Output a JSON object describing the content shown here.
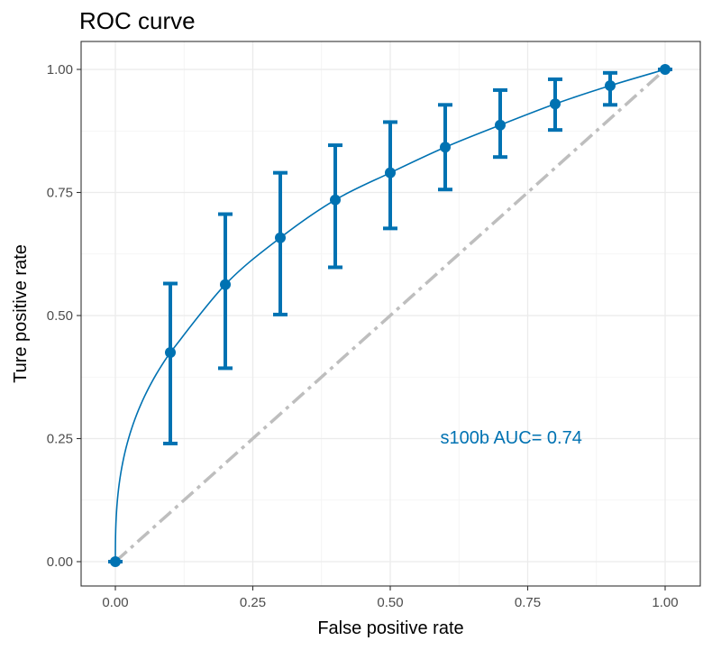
{
  "chart_data": {
    "type": "line",
    "title": "ROC curve",
    "xlabel": "False positive rate",
    "ylabel": "Ture positive rate",
    "xlim": [
      0,
      1
    ],
    "ylim": [
      0,
      1
    ],
    "x_ticks": [
      "0.00",
      "0.25",
      "0.50",
      "0.75",
      "1.00"
    ],
    "y_ticks": [
      "0.00",
      "0.25",
      "0.50",
      "0.75",
      "1.00"
    ],
    "grid": true,
    "series_color": "#0072B2",
    "diagonal_color": "#BEBEBE",
    "points": [
      {
        "x": 0.0,
        "y": 0.0,
        "ymin": 0.0,
        "ymax": 0.0
      },
      {
        "x": 0.1,
        "y": 0.425,
        "ymin": 0.24,
        "ymax": 0.565
      },
      {
        "x": 0.2,
        "y": 0.563,
        "ymin": 0.393,
        "ymax": 0.706
      },
      {
        "x": 0.3,
        "y": 0.658,
        "ymin": 0.502,
        "ymax": 0.79
      },
      {
        "x": 0.4,
        "y": 0.735,
        "ymin": 0.598,
        "ymax": 0.846
      },
      {
        "x": 0.5,
        "y": 0.79,
        "ymin": 0.677,
        "ymax": 0.893
      },
      {
        "x": 0.6,
        "y": 0.842,
        "ymin": 0.756,
        "ymax": 0.928
      },
      {
        "x": 0.7,
        "y": 0.887,
        "ymin": 0.822,
        "ymax": 0.958
      },
      {
        "x": 0.8,
        "y": 0.93,
        "ymin": 0.877,
        "ymax": 0.98
      },
      {
        "x": 0.9,
        "y": 0.967,
        "ymin": 0.928,
        "ymax": 0.993
      },
      {
        "x": 1.0,
        "y": 1.0,
        "ymin": 1.0,
        "ymax": 1.0
      }
    ],
    "annotation": {
      "text": "s100b AUC= 0.74",
      "x": 0.72,
      "y": 0.24
    }
  }
}
